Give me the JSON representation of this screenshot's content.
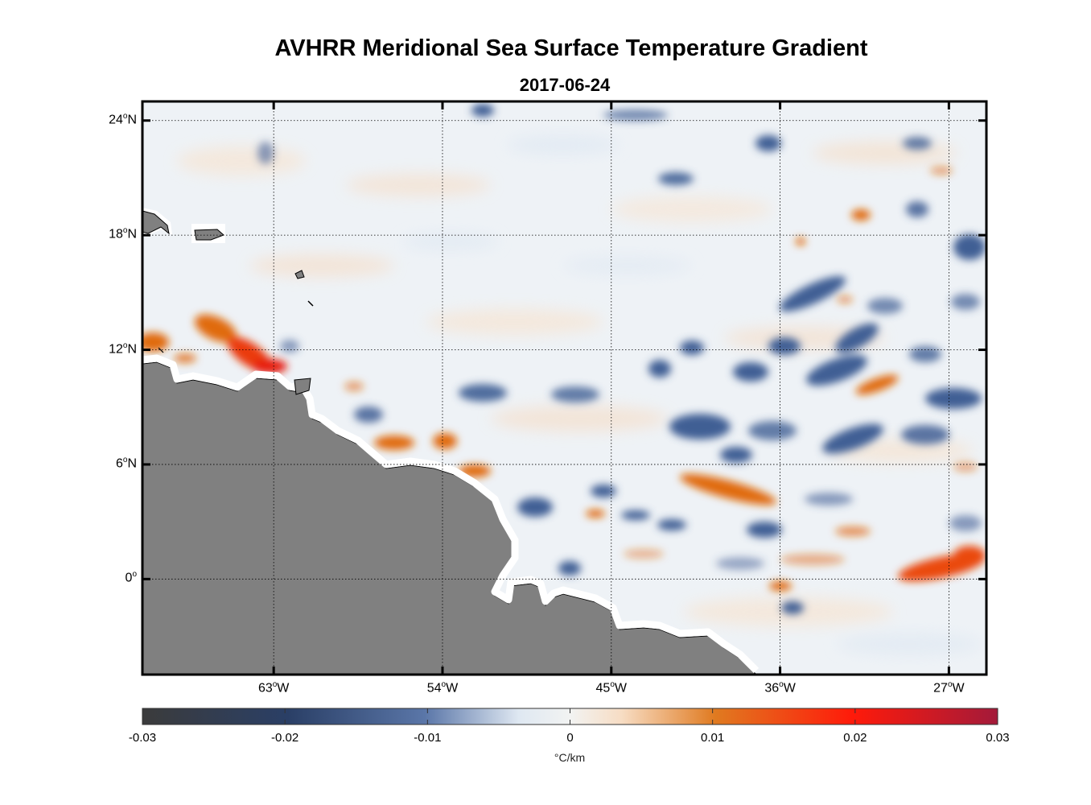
{
  "chart_data": {
    "type": "heatmap",
    "title": "AVHRR Meridional Sea Surface Temperature Gradient",
    "subtitle": "2017-06-24",
    "lon_range": [
      -70,
      -25
    ],
    "lat_range": [
      -5,
      25
    ],
    "y_ticks": [
      {
        "lat": 24,
        "label": "24",
        "hemi": "N"
      },
      {
        "lat": 18,
        "label": "18",
        "hemi": "N"
      },
      {
        "lat": 12,
        "label": "12",
        "hemi": "N"
      },
      {
        "lat": 6,
        "label": "6",
        "hemi": "N"
      },
      {
        "lat": 0,
        "label": "0",
        "hemi": ""
      }
    ],
    "x_ticks": [
      {
        "lon": -63,
        "label": "63",
        "hemi": "W"
      },
      {
        "lon": -54,
        "label": "54",
        "hemi": "W"
      },
      {
        "lon": -45,
        "label": "45",
        "hemi": "W"
      },
      {
        "lon": -36,
        "label": "36",
        "hemi": "W"
      },
      {
        "lon": -27,
        "label": "27",
        "hemi": "W"
      }
    ],
    "colorbar": {
      "min": -0.03,
      "max": 0.03,
      "ticks": [
        "-0.03",
        "-0.02",
        "-0.01",
        "0",
        "0.01",
        "0.02",
        "0.03"
      ],
      "units": "°C/km",
      "colors": [
        "#3b3b3b",
        "#2a3f66",
        "#5a76a8",
        "#f0f2f4",
        "#e59040",
        "#ff1a0a",
        "#a31a3a"
      ]
    },
    "features": {
      "positive_gradient_color": "#e06a10",
      "negative_gradient_color": "#3f5e94",
      "land_color": "#808080"
    }
  }
}
